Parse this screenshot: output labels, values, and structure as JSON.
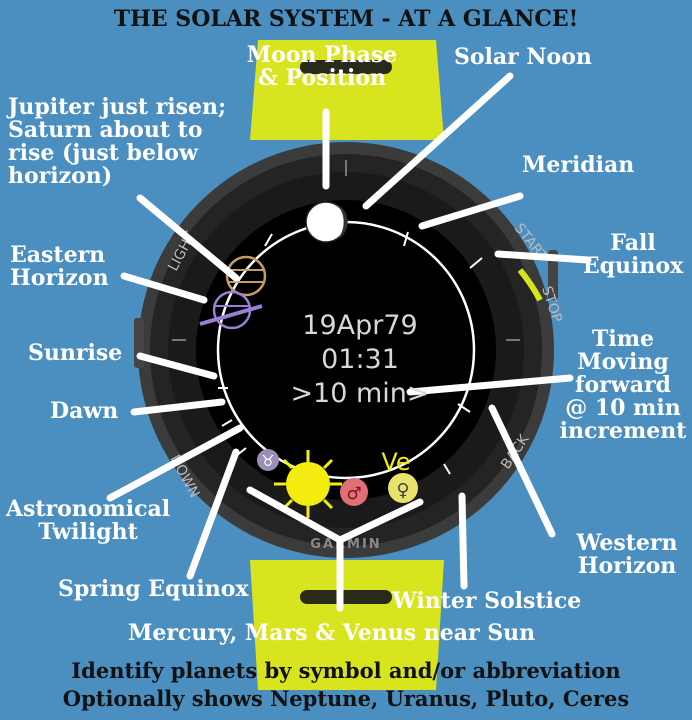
{
  "title": "THE SOLAR SYSTEM - AT A GLANCE!",
  "watch": {
    "date": "19Apr79",
    "time": "01:31",
    "step": ">10 min>",
    "brand": "GARMIN",
    "bezel_left": "LIGHT",
    "bezel_right_top": "START",
    "bezel_right": "STOP",
    "bezel_left_low": "DOWN",
    "bezel_right_low": "BACK"
  },
  "planet_labels": {
    "venus_abbrev": "Ve"
  },
  "annotations": {
    "moon": [
      "Moon Phase",
      "& Position"
    ],
    "solar_noon": "Solar Noon",
    "jupiter": [
      "Jupiter just risen;",
      "Saturn about to",
      "rise (just below",
      "horizon)"
    ],
    "meridian": "Meridian",
    "fall_equinox": [
      "Fall",
      "Equinox"
    ],
    "eastern_horizon": [
      "Eastern",
      "Horizon"
    ],
    "sunrise": "Sunrise",
    "time_moving": [
      "Time",
      "Moving",
      "forward",
      "@ 10 min",
      "increment"
    ],
    "dawn": "Dawn",
    "astro_twilight": [
      "Astronomical",
      "Twilight"
    ],
    "western_horizon": [
      "Western",
      "Horizon"
    ],
    "spring_equinox": "Spring Equinox",
    "winter_solstice": "Winter Solstice",
    "mercury_mars_venus": "Mercury, Mars & Venus near Sun"
  },
  "footer": [
    "Identify planets by symbol and/or abbreviation",
    "Optionally shows Neptune, Uranus, Pluto, Ceres"
  ],
  "colors": {
    "background": "#4a8fbf",
    "strap": "#d8e41e",
    "sun": "#f5ec10",
    "jupiter": "#c79a6a",
    "saturn": "#9b7fd6",
    "mars": "#e07075",
    "venus": "#e8e36a"
  }
}
